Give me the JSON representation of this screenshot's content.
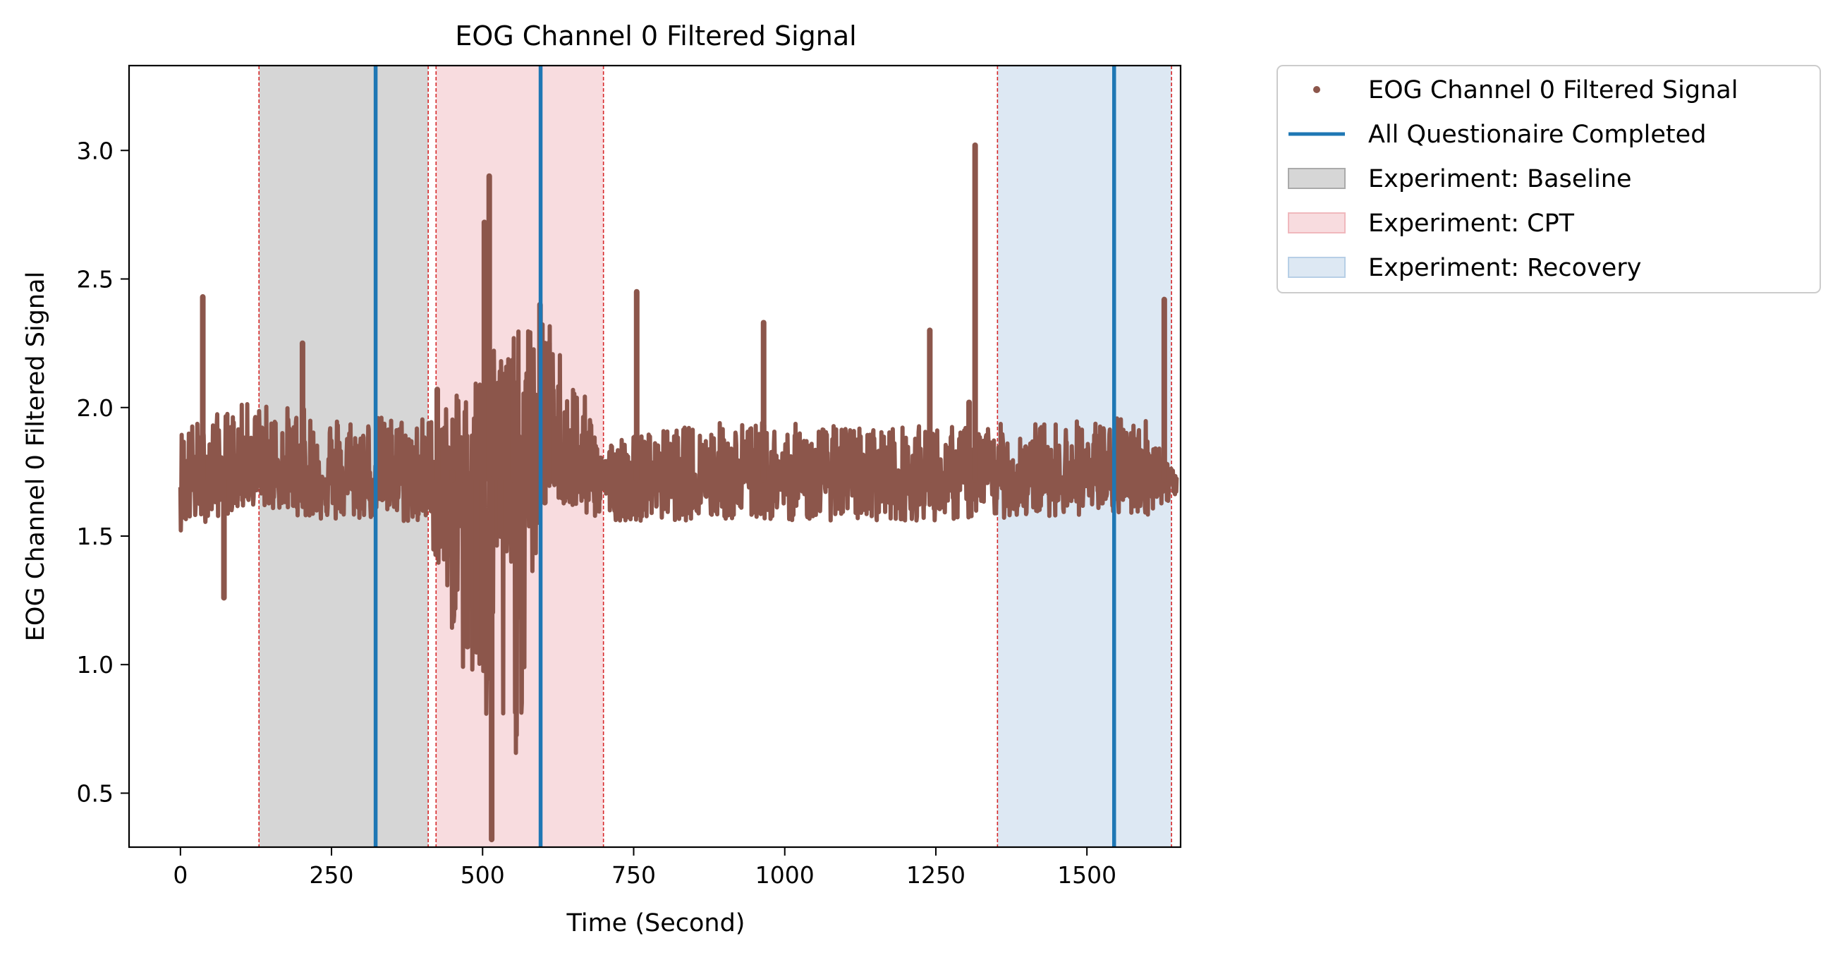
{
  "chart_data": {
    "type": "line",
    "title": "EOG Channel 0 Filtered Signal",
    "xlabel": "Time (Second)",
    "ylabel": "EOG Channel 0 Filtered Signal",
    "xlim": [
      -85,
      1655
    ],
    "ylim": [
      0.29,
      3.33
    ],
    "xticks": [
      0,
      250,
      500,
      750,
      1000,
      1250,
      1500
    ],
    "xtick_labels": [
      "0",
      "250",
      "500",
      "750",
      "1000",
      "1250",
      "1500"
    ],
    "yticks": [
      0.5,
      1.0,
      1.5,
      2.0,
      2.5,
      3.0
    ],
    "ytick_labels": [
      "0.5",
      "1.0",
      "1.5",
      "2.0",
      "2.5",
      "3.0"
    ],
    "grid": false,
    "legend_position": "outside-upper-right",
    "series": [
      {
        "name": "EOG Channel 0 Filtered Signal",
        "color": "#8c564b",
        "marker": "point",
        "baseline": 1.72,
        "envelope": {
          "x": [
            0,
            120,
            250,
            340,
            410,
            470,
            520,
            560,
            600,
            640,
            700,
            900,
            1100,
            1300,
            1450,
            1600,
            1650
          ],
          "upper": [
            1.93,
            2.03,
            1.98,
            1.97,
            1.97,
            2.07,
            2.3,
            2.3,
            2.38,
            2.2,
            1.88,
            1.95,
            1.93,
            1.93,
            1.95,
            1.97,
            1.72
          ],
          "lower": [
            1.52,
            1.62,
            1.55,
            1.57,
            1.52,
            0.92,
            0.55,
            0.65,
            1.72,
            1.6,
            1.56,
            1.56,
            1.56,
            1.56,
            1.58,
            1.58,
            1.65
          ]
        },
        "spikes": [
          {
            "x": 37,
            "y": 2.43
          },
          {
            "x": 72,
            "y": 1.26
          },
          {
            "x": 202,
            "y": 2.25
          },
          {
            "x": 425,
            "y": 2.07
          },
          {
            "x": 450,
            "y": 1.75
          },
          {
            "x": 467,
            "y": 1.82
          },
          {
            "x": 475,
            "y": 1.07
          },
          {
            "x": 490,
            "y": 1.05
          },
          {
            "x": 503,
            "y": 2.72
          },
          {
            "x": 511,
            "y": 2.9
          },
          {
            "x": 515,
            "y": 0.32
          },
          {
            "x": 530,
            "y": 1.5
          },
          {
            "x": 550,
            "y": 2.15
          },
          {
            "x": 595,
            "y": 2.4
          },
          {
            "x": 603,
            "y": 1.63
          },
          {
            "x": 610,
            "y": 2.25
          },
          {
            "x": 755,
            "y": 2.45
          },
          {
            "x": 965,
            "y": 2.33
          },
          {
            "x": 1240,
            "y": 2.3
          },
          {
            "x": 1305,
            "y": 2.02
          },
          {
            "x": 1315,
            "y": 3.02
          },
          {
            "x": 1628,
            "y": 2.42
          }
        ]
      },
      {
        "name": "All Questionaire Completed",
        "color": "#1f77b4",
        "type": "vline",
        "x": [
          323,
          596,
          1545
        ]
      }
    ],
    "regions": [
      {
        "name": "Experiment: Baseline",
        "start": 130,
        "end": 410,
        "color": "#d6d6d6"
      },
      {
        "name": "Experiment: CPT",
        "start": 423,
        "end": 700,
        "color": "#f8dcdf"
      },
      {
        "name": "Experiment: Recovery",
        "start": 1352,
        "end": 1640,
        "color": "#dde8f3"
      }
    ],
    "boundary_lines": {
      "color": "#d62728",
      "x": [
        130,
        410,
        423,
        700,
        1352,
        1640
      ]
    }
  }
}
